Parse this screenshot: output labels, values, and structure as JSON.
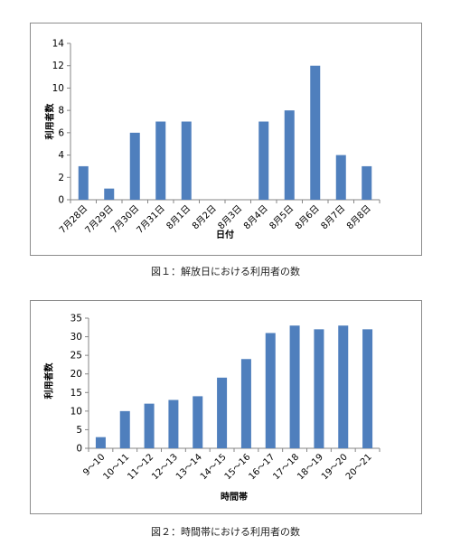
{
  "chart_data": [
    {
      "type": "bar",
      "categories": [
        "7月28日",
        "7月29日",
        "7月30日",
        "7月31日",
        "8月1日",
        "8月2日",
        "8月3日",
        "8月4日",
        "8月5日",
        "8月6日",
        "8月7日",
        "8月8日"
      ],
      "values": [
        3,
        1,
        6,
        7,
        7,
        0,
        0,
        7,
        8,
        12,
        4,
        3
      ],
      "ylim": [
        0,
        14
      ],
      "yticks": [
        0,
        2,
        4,
        6,
        8,
        10,
        12,
        14
      ],
      "xlabel": "日付",
      "ylabel": "利用者数",
      "color": "#4f7fbd",
      "grid": false,
      "caption": "図１：解放日における利用者の数"
    },
    {
      "type": "bar",
      "categories": [
        "9～10",
        "10～11",
        "11～12",
        "12～13",
        "13～14",
        "14～15",
        "15～16",
        "16～17",
        "17～18",
        "18～19",
        "19～20",
        "20～21"
      ],
      "values": [
        3,
        10,
        12,
        13,
        14,
        19,
        24,
        31,
        33,
        32,
        33,
        32
      ],
      "ylim": [
        0,
        35
      ],
      "yticks": [
        0,
        5,
        10,
        15,
        20,
        25,
        30,
        35
      ],
      "xlabel": "時間帯",
      "ylabel": "利用者数",
      "color": "#4f7fbd",
      "grid": false,
      "caption": "図２：時間帯における利用者の数"
    }
  ]
}
